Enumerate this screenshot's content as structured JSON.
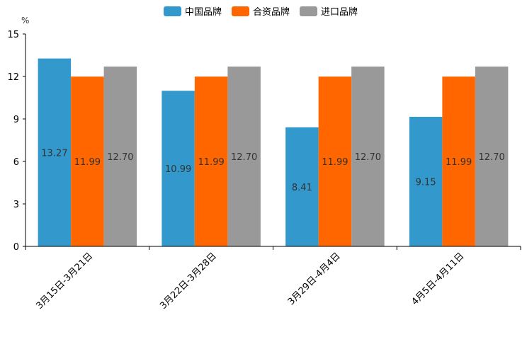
{
  "chart_data": {
    "type": "bar",
    "title": "",
    "xlabel": "",
    "ylabel": "%",
    "ylim": [
      0,
      15
    ],
    "yticks": [
      0,
      3,
      6,
      9,
      12,
      15
    ],
    "categories": [
      "3月15日-3月21日",
      "3月22日-3月28日",
      "3月29日-4月4日",
      "4月5日-4月11日"
    ],
    "series": [
      {
        "name": "中国品牌",
        "color": "#3399CC",
        "values": [
          13.27,
          10.99,
          8.41,
          9.15
        ],
        "labels": [
          "13.27",
          "10.99",
          "8.41",
          "9.15"
        ]
      },
      {
        "name": "合资品牌",
        "color": "#FF6600",
        "values": [
          11.99,
          11.99,
          11.99,
          11.99
        ],
        "labels": [
          "11.99",
          "11.99",
          "11.99",
          "11.99"
        ]
      },
      {
        "name": "进口品牌",
        "color": "#999999",
        "values": [
          12.7,
          12.7,
          12.7,
          12.7
        ],
        "labels": [
          "12.70",
          "12.70",
          "12.70",
          "12.70"
        ]
      }
    ],
    "legend": "top-center",
    "grid": false
  }
}
